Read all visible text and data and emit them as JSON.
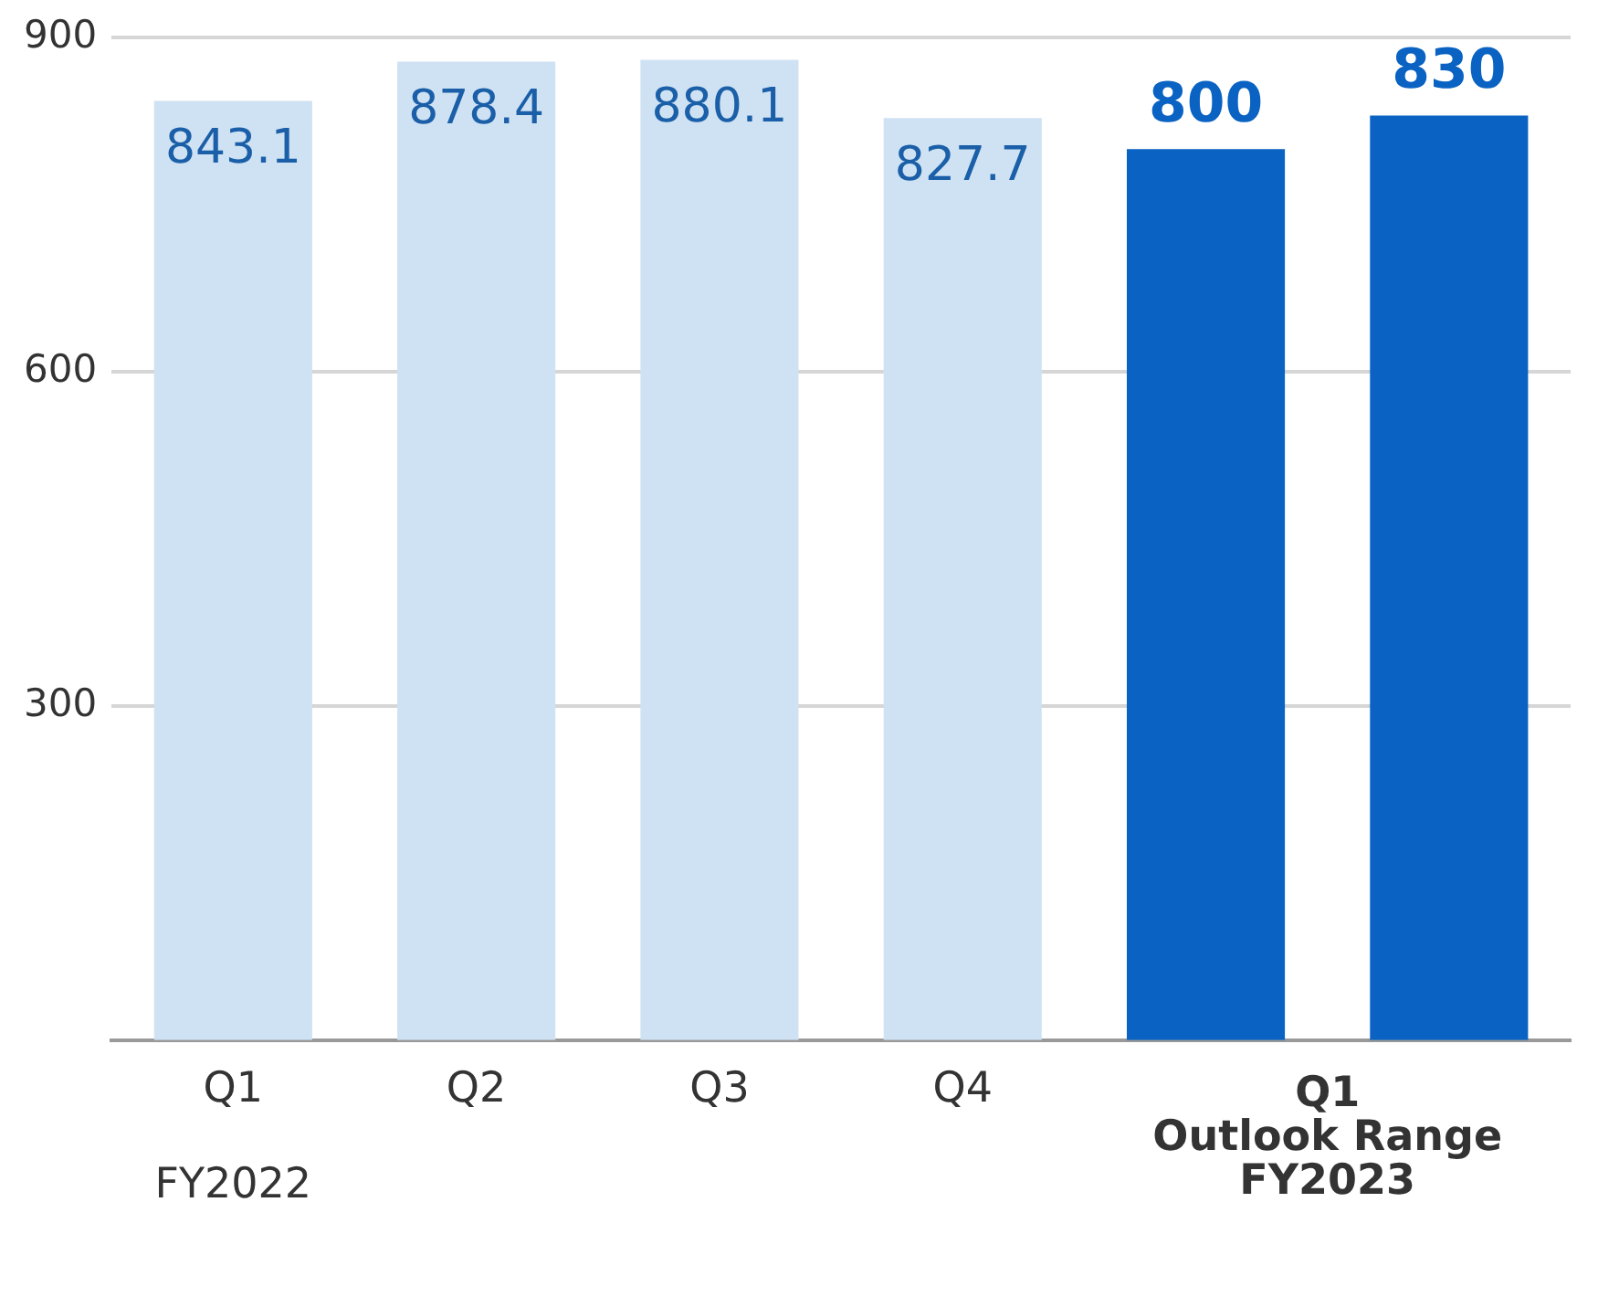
{
  "chart_data": {
    "type": "bar",
    "categories": [
      "Q1",
      "Q2",
      "Q3",
      "Q4",
      null,
      null
    ],
    "values": [
      843.1,
      878.4,
      880.1,
      827.7,
      800,
      830
    ],
    "colors": [
      "#cfe2f3",
      "#cfe2f3",
      "#cfe2f3",
      "#cfe2f3",
      "#0a62c2",
      "#0a62c2"
    ],
    "ylim": [
      0,
      900
    ],
    "yticks": [
      300,
      600,
      900
    ],
    "grid": "y",
    "data_labels": true,
    "legend": false,
    "annotations": [
      "Q1",
      "Outlook Range",
      "FY2022",
      "FY2023"
    ]
  }
}
